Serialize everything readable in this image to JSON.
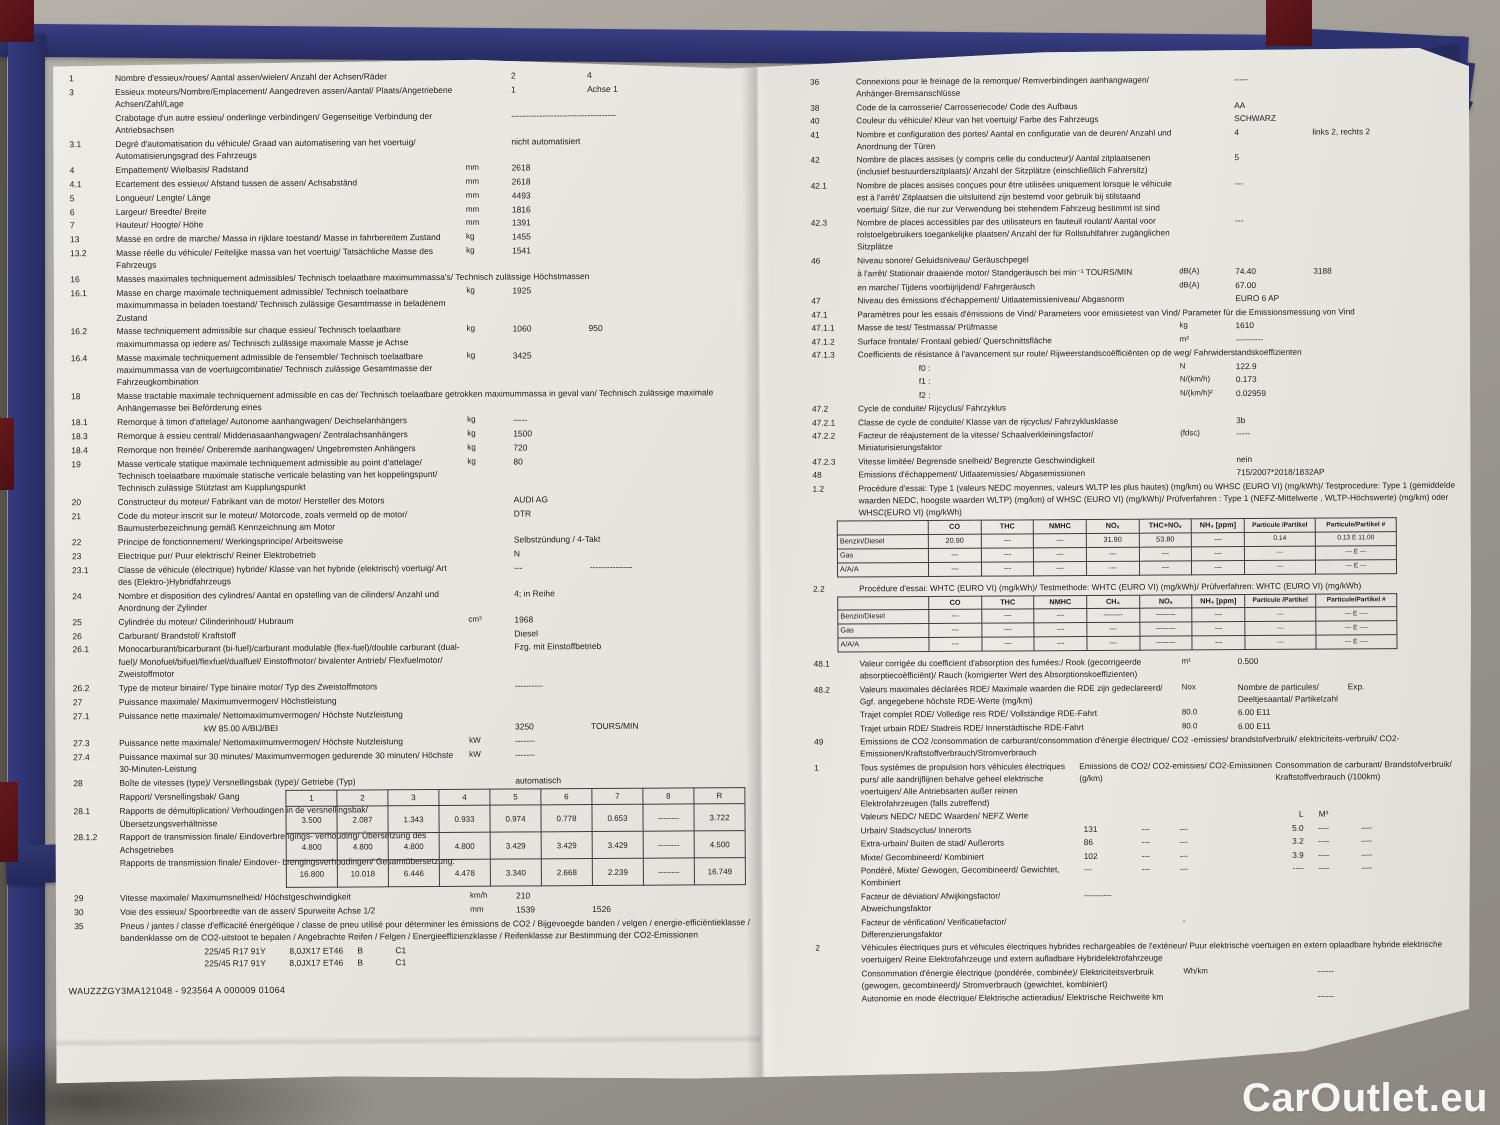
{
  "watermark": "CarOutlet.eu",
  "vin_line": "WAUZZZGY3MA121048 - 923564 A 000009   01064",
  "left_page": {
    "rows_a": [
      {
        "n": "1",
        "t": "Nombre d'essieux/roues/ Aantal assen/wielen/ Anzahl der Achsen/Räder",
        "v1": "2",
        "v2": "4"
      },
      {
        "n": "3",
        "t": "Essieux moteurs/Nombre/Emplacement/ Aangedreven assen/Aantal/ Plaats/Angetriebene Achsen/Zahl/Lage",
        "v1": "1",
        "v2": "Achse 1"
      },
      {
        "n": "",
        "t": "Crabotage d'un autre essieu/ onderlinge verbindingen/ Gegenseitige Verbindung der Antriebsachsen",
        "v1": "-------------------------------------"
      },
      {
        "n": "3.1",
        "t": "Degré d'automatisation du véhicule/ Graad van automatisering van het voertuig/ Automatisierungsgrad des Fahrzeugs",
        "v1": "nicht automatisiert"
      },
      {
        "n": "4",
        "t": "Empattement/ Wielbasis/ Radstand",
        "u": "mm",
        "v1": "2618"
      },
      {
        "n": "4.1",
        "t": "Ecartement des essieux/ Afstand tussen de assen/ Achsabständ",
        "u": "mm",
        "v1": "2618"
      },
      {
        "n": "5",
        "t": "Longueur/ Lengte/ Länge",
        "u": "mm",
        "v1": "4493"
      },
      {
        "n": "6",
        "t": "Largeur/ Breedte/ Breite",
        "u": "mm",
        "v1": "1816"
      },
      {
        "n": "7",
        "t": "Hauteur/ Hoogte/ Höhe",
        "u": "mm",
        "v1": "1391"
      },
      {
        "n": "13",
        "t": "Masse en ordre de marche/ Massa in rijklare toestand/ Masse in fahrbereitem Zustand",
        "u": "kg",
        "v1": "1455"
      },
      {
        "n": "13.2",
        "t": "Masse réelle du véhicule/ Feitelijke massa van het voertuig/ Tatsächliche Masse des Fahrzeugs",
        "u": "kg",
        "v1": "1541"
      },
      {
        "n": "16",
        "t": "Masses maximales techniquement admissibles/ Technisch toelaatbare maximummassa's/ Technisch zulässige Höchstmassen",
        "w": 1
      },
      {
        "n": "16.1",
        "t": "Masse en charge maximale techniquement admissible/ Technisch toelaatbare maximummassa in beladen toestand/ Technisch zulässige Gesamtmasse in beladenem Zustand",
        "u": "kg",
        "v1": "1925"
      },
      {
        "n": "16.2",
        "t": "Masse techniquement admissible sur chaque essieu/ Technisch toelaatbare maximummassa op iedere as/ Technisch zulässige maximale Masse je Achse",
        "u": "kg",
        "v1": "1060",
        "v2": "950"
      },
      {
        "n": "16.4",
        "t": "Masse maximale techniquement admissible de l'ensemble/ Technisch toelaatbare maximummassa van de voertuigcombinatie/ Technisch zulässige Gesamtmasse der Fahrzeugkombination",
        "u": "kg",
        "v1": "3425"
      },
      {
        "n": "18",
        "t": "Masse tractable maximale techniquement admissible en cas de/ Technisch toelaatbare getrokken maximummassa in geval van/ Technisch zulässige maximale Anhängemasse bei Beförderung eines",
        "w": 1
      },
      {
        "n": "18.1",
        "t": "Remorque à timon d'attelage/ Autonome aanhangwagen/ Deichselanhängers",
        "u": "kg",
        "v1": "-----"
      },
      {
        "n": "18.3",
        "t": "Remorque à essieu central/ Middenasaanhangwagen/ Zentralachsanhängers",
        "u": "kg",
        "v1": "1500"
      },
      {
        "n": "18.4",
        "t": "Remorque non freinée/ Onberemde aanhangwagen/ Ungebremsten Anhängers",
        "u": "kg",
        "v1": "720"
      },
      {
        "n": "19",
        "t": "Masse verticale statique maximale techniquement admissible au point d'attelage/ Technisch toelaatbare maximale statische verticale belasting van het koppelingspunt/ Technisch zulässige Stützlast am Kupplungspunkt",
        "u": "kg",
        "v1": "80"
      },
      {
        "n": "20",
        "t": "Constructeur du moteur/ Fabrikant van de motor/ Hersteller des Motors",
        "v1": "AUDI AG"
      },
      {
        "n": "21",
        "t": "Code du moteur inscrit sur le moteur/ Motorcode, zoals vermeld op de motor/ Baumusterbezeichnung gemäß Kennzeichnung am Motor",
        "v1": "DTR"
      },
      {
        "n": "22",
        "t": "Principe de fonctionnement/ Werkingsprincipe/ Arbeitsweise",
        "v1": "Selbstzündung / 4-Takt"
      },
      {
        "n": "23",
        "t": "Electrique pur/ Puur elektrisch/ Reiner Elektrobetrieb",
        "v1": "N"
      },
      {
        "n": "23.1",
        "t": "Classe de véhicule (électrique) hybride/ Klasse van het hybride (elektrisch) voertuig/ Art des (Elektro-)Hybridfahrzeugs",
        "v1": "---",
        "v2": "---------------"
      },
      {
        "n": "24",
        "t": "Nombre et disposition des cylindres/ Aantal en opstelling van de cilinders/ Anzahl und Anordnung der Zylinder",
        "v1": "4; in Reihe"
      },
      {
        "n": "25",
        "t": "Cylindrée du moteur/ Cilinderinhoud/ Hubraum",
        "u": "cm³",
        "v1": "1968"
      },
      {
        "n": "26",
        "t": "Carburant/ Brandstof/ Kraftstoff",
        "v1": "Diesel"
      },
      {
        "n": "26.1",
        "t": "Monocarburant/bicarburant (bi-fuel)/carburant modulable (flex-fuel)/double carburant (dual-fuel)/ Monofuel/bifuel/flexfuel/dualfuel/ Einstoffmotor/ bivalenter Antrieb/ Flexfuelmotor/ Zweistoffmotor",
        "v1": "Fzg. mit Einstoffbetrieb"
      },
      {
        "n": "26.2",
        "t": "Type de moteur binaire/ Type binaire motor/ Typ des Zweistoffmotors",
        "v1": "----------"
      },
      {
        "n": "27",
        "t": "Puissance maximale/ Maximumvermogen/ Höchstleistung",
        "w": 1
      },
      {
        "n": "27.1",
        "t": "Puissance nette maximale/ Nettomaximumvermogen/ Höchste Nutzleistung",
        "w": 1
      },
      {
        "n": "",
        "t": "kW  85.00 A/BIJ/BEI",
        "ind": 1,
        "v1": "3250",
        "v2": "TOURS/MIN"
      },
      {
        "n": "27.3",
        "t": "Puissance nette maximale/ Nettomaximumvermogen/ Höchste Nutzleistung",
        "u": "kW",
        "v1": "-------"
      },
      {
        "n": "27.4",
        "t": "Puissance maximal sur 30 minutes/ Maximumvermogen gedurende 30 minuten/ Höchste 30-Minuten-Leistung",
        "u": "kW",
        "v1": "-------"
      },
      {
        "n": "28",
        "t": "Boîte de vitesses (type)/ Versnellingsbak (type)/ Getriebe (Typ)",
        "v1": "automatisch"
      }
    ],
    "gearbox": {
      "side_labels": [
        {
          "n": "",
          "t": "Rapport/ Versnellingsbak/ Gang"
        },
        {
          "n": "28.1",
          "t": "Rapports de démultiplication/ Verhoudingen in de versnellingsbak/ Übersetzungsverhältnisse"
        },
        {
          "n": "28.1.2",
          "t": "Rapport de transmission finale/ Eindoverbrengings- verhouding/ Übersetzung des Achsgetriebes"
        },
        {
          "n": "",
          "t": "Rapports de transmission finale/ Eindover- brengingsverhoudingen/ Gesamtübersetzung:"
        }
      ],
      "header": [
        "1",
        "2",
        "3",
        "4",
        "5",
        "6",
        "7",
        "8",
        "R"
      ],
      "rows": [
        [
          "3.500",
          "2.087",
          "1.343",
          "0.933",
          "0.974",
          "0.778",
          "0.653",
          "--------",
          "3.722"
        ],
        [
          "4.800",
          "4.800",
          "4.800",
          "4.800",
          "3.429",
          "3.429",
          "3.429",
          "--------",
          "4.500"
        ],
        [
          "16.800",
          "10.018",
          "6.446",
          "4.478",
          "3.340",
          "2.668",
          "2.239",
          "--------",
          "16.749"
        ]
      ]
    },
    "rows_b": [
      {
        "n": "29",
        "t": "Vitesse maximale/ Maximumsnelheid/ Höchstgeschwindigkeit",
        "u": "km/h",
        "v1": "210"
      },
      {
        "n": "30",
        "t": "Voie des essieux/ Spoorbreedte van de assen/ Spurweite Achse 1/2",
        "u": "mm",
        "v1": "1539",
        "v2": "1526"
      },
      {
        "n": "35",
        "t": "Pneus / jantes / classe d'efficacité énergétique / classe de pneu utilisé pour déterminer les émissions de CO2 / Bijgevoegde banden / velgen / energie-efficiëntieklasse / bandenklasse om de CO2-uitstoot te bepalen / Angebrachte Reifen / Felgen / Energieeffizienzklasse / Reifenklasse zur Bestimmung der CO2-Emissionen",
        "w": 1
      }
    ],
    "tyres": [
      {
        "tyre": "225/45 R17 91Y",
        "rim": "8,0JX17 ET46",
        "cls": "B",
        "c1": "C1"
      },
      {
        "tyre": "225/45 R17 91Y",
        "rim": "8,0JX17 ET46",
        "cls": "B",
        "c1": "C1"
      }
    ]
  },
  "right_page": {
    "rows_a": [
      {
        "n": "36",
        "t": "Connexions pour le freinage de la remorque/ Remverbindingen aanhangwagen/ Anhänger-Bremsanschlüsse",
        "v1": "-----"
      },
      {
        "n": "38",
        "t": "Code de la carrosserie/ Carrosseriecode/ Code des Aufbaus",
        "v1": "AA"
      },
      {
        "n": "40",
        "t": "Couleur du véhicule/ Kleur van het voertuig/ Farbe des Fahrzeugs",
        "v1": "SCHWARZ"
      },
      {
        "n": "41",
        "t": "Nombre et configuration des portes/ Aantal en configuratie van de deuren/ Anzahl und Anordnung der Türen",
        "v1": "4",
        "v2": "links 2, rechts 2"
      },
      {
        "n": "42",
        "t": "Nombre de places assises (y compris celle du conducteur)/ Aantal zitplaatsenen (inclusief bestuurderszitplaats)/ Anzahl der Sitzplätze (einschließlich Fahrersitz)",
        "v1": "5"
      },
      {
        "n": "42.1",
        "t": "Nombre de places assises conçues pour être utilisées uniquement lorsque le véhicule est à l'arrêt/ Zitplaatsen die uitsluitend zijn bestemd voor gebruik bij stilstaand voertuig/ Sitze, die nur zur Verwendung bei stehendem Fahrzeug bestimmt ist sind",
        "v1": "---"
      },
      {
        "n": "42.3",
        "t": "Nombre de places accessibles par des utilisateurs en fauteuil roulant/ Aantal voor rolstoelgebruikers toegankelijke plaatsen/ Anzahl der für Rollstuhlfahrer zugänglichen Sitzplätze",
        "v1": "---"
      },
      {
        "n": "46",
        "t": "Niveau sonore/ Geluidsniveau/  Geräuschpegel",
        "w": 1
      },
      {
        "n": "",
        "t": "à l'arrêt/ Stationair draaiende motor/ Standgeräusch bei min⁻¹ TOURS/MIN",
        "u": "dB(A)",
        "v1": "74.40",
        "v2": "3188"
      },
      {
        "n": "",
        "t": "en marche/ Tijdens voorbijrijdend/ Fahrgeräusch",
        "u": "dB(A)",
        "v1": "67.00"
      },
      {
        "n": "47",
        "t": "Niveau des émissions d'échappement/ Uitlaatemissieniveau/ Abgasnorm",
        "v1": "EURO 6 AP"
      },
      {
        "n": "47.1",
        "t": "Paramètres pour les essais d'émissions de Vind/ Parameters voor emissietest van Vind/ Parameter für die Emissionsmessung von Vind",
        "w": 1
      },
      {
        "n": "47.1.1",
        "t": "Masse de test/ Testmassa/ Prüfmasse",
        "u": "kg",
        "v1": "1610"
      },
      {
        "n": "47.1.2",
        "t": "Surface frontale/ Frontaal gebied/ Querschnittsfläche",
        "u": "m²",
        "v1": "----------"
      },
      {
        "n": "47.1.3",
        "t": "Coefficients de résistance à l'avancement sur route/ Rijweerstandscoëfficiënten op de weg/ Fahrwiderstandskoeffizienten",
        "w": 1
      },
      {
        "n": "",
        "t": "f0 :",
        "ind": 2,
        "u": "N",
        "v1": "122.9"
      },
      {
        "n": "",
        "t": "f1 :",
        "ind": 2,
        "u": "N/(km/h)",
        "v1": "0.173"
      },
      {
        "n": "",
        "t": "f2 :",
        "ind": 2,
        "u": "N/(km/h)²",
        "v1": "0.02959"
      },
      {
        "n": "47.2",
        "t": "Cycle de conduite/ Rijcyclus/ Fahrzyklus",
        "w": 1
      },
      {
        "n": "47.2.1",
        "t": "Classe de cycle de conduite/ Klasse van de rijcyclus/ Fahrzyklusklasse",
        "v1": "3b"
      },
      {
        "n": "47.2.2",
        "t": "Facteur de réajustement de la vitesse/ Schaalverkleiningsfactor/ Miniaturisierungsfaktor",
        "u": "(fdsc)",
        "v1": "-----"
      },
      {
        "n": "47.2.3",
        "t": "Vitesse limitée/ Begrensde snelheid/ Begrenzte Geschwindigkeit",
        "v1": "nein"
      },
      {
        "n": "48",
        "t": "Emissions d'échappement/ Uitlaatemissies/ Abgasemissionen",
        "v1": "715/2007*2018/1832AP"
      },
      {
        "n": "1.2",
        "t": "Procédure d'essai: Type 1 (valeurs NEDC moyennes, valeurs WLTP les plus hautes) (mg/km) ou WHSC (EURO VI) (mg/kWh)/ Testprocedure: Type 1 (gemiddelde waarden NEDC, hoogste waarden WLTP) (mg/km) of WHSC (EURO VI) (mg/kWh)/ Prüfverfahren : Type 1 (NEFZ-Mittelwerte , WLTP-Höchswerte) (mg/km) oder WHSC(EURO VI) (mg/kWh)",
        "w": 1
      }
    ],
    "emis1": {
      "cols": [
        "",
        "CO",
        "THC",
        "NMHC",
        "NOₓ",
        "THC+NOₓ",
        "NH₃ [ppm]",
        "Particule /Partikel",
        "Particule/Partikel #"
      ],
      "rows": [
        [
          "Benzin/Diesel",
          "20.90",
          "---",
          "---",
          "31.90",
          "53.80",
          "---",
          "0.14",
          "0.13 E 11.00"
        ],
        [
          "Gas",
          "---",
          "---",
          "---",
          "---",
          "---",
          "---",
          "---",
          "--- E ---"
        ],
        [
          "A/A/A",
          "---",
          "---",
          "---",
          "---",
          "---",
          "---",
          "---",
          "--- E ---"
        ]
      ]
    },
    "rows_b": [
      {
        "n": "2.2",
        "t": "Procédure d'essai: WHTC (EURO VI) (mg/kWh)/ Testmethode: WHTC (EURO VI) (mg/kWh)/ Prüfverfahren: WHTC (EURO VI) (mg/kWh)",
        "w": 1
      }
    ],
    "emis2": {
      "cols": [
        "",
        "CO",
        "THC",
        "NMHC",
        "CH₄",
        "NOₓ",
        "NH₃ [ppm]",
        "Particule /Partikel",
        "Particule/Partikel #"
      ],
      "rows": [
        [
          "Benzin/Diesel",
          "---",
          "---",
          "---",
          "--------",
          "--------",
          "---",
          "---",
          "--- E ----"
        ],
        [
          "Gas",
          "---",
          "---",
          "---",
          "---",
          "--------",
          "---",
          "---",
          "--- E ----"
        ],
        [
          "A/A/A",
          "---",
          "---",
          "---",
          "---",
          "--------",
          "---",
          "---",
          "--- E ----"
        ]
      ]
    },
    "rows_c": [
      {
        "n": "48.1",
        "t": "Valeur corrigée du coefficient d'absorption des fumées:/ Rook (gecorrigeerde absorptiecoëfficiënt)/ Rauch (korrigierter Wert des Absorptionskoeffizienten)",
        "u": "m¹",
        "v1": "0.500"
      },
      {
        "n": "48.2",
        "t": "Valeurs maximales déclarées RDE/ Maximale waarden die RDE zijn gedeclareerd/ Ggf. angegebene höchste RDE-Werte  (mg/km)",
        "u": "Nox",
        "v1": "Nombre de particules/ Deeltjesaantal/ Partikelzahl",
        "vw": 1,
        "v2": "Exp."
      },
      {
        "n": "",
        "t": "Trajet complet RDE/ Volledige reis RDE/ Vollständige RDE-Fahrt",
        "u": "80.0",
        "v1": "6.00 E11"
      },
      {
        "n": "",
        "t": "Trajet urbain RDE/ Stadreis RDE/ Innerstädtische RDE-Fahrt",
        "u": "80.0",
        "v1": "6.00 E11"
      },
      {
        "n": "49",
        "t": "Emissions de CO2 /consommation de carburant/consommation d'énergie électrique/ CO2 -emissies/ brandstofverbruik/ elektriciteits-verbruik/ CO2-Emissionen/Kraftstoffverbrauch/Stromverbrauch",
        "w": 1
      }
    ],
    "co2": {
      "num": "1",
      "intro": "Tous systèmes de propulsion hors véhicules électriques purs/ alle aandrijflijnen behalve geheel elektrische voertuigen/ Alle Antriebsarten außer reinen Elektrofahrzeugen (falls zutreffend)",
      "h1": "Emissions de CO2/ CO2-emissies/ CO2-Emissionen (g/km)",
      "h2": "Consommation de carburant/ Brandstofverbruik/ Kraftstoffverbrauch (/100km)",
      "rows": [
        {
          "t": "Valeurs NEDC/ NEDC Waarden/ NEFZ Werte",
          "vals": [
            "",
            "",
            "",
            "L",
            "M³",
            ""
          ]
        },
        {
          "t": "Urbain/ Stadscyclus/ Innerorts",
          "vals": [
            "131",
            "---",
            "---",
            "5.0",
            "----",
            "----"
          ]
        },
        {
          "t": "Extra-urbain/ Buiten de stad/ Außerorts",
          "vals": [
            "86",
            "---",
            "---",
            "3.2",
            "----",
            "----"
          ]
        },
        {
          "t": "Mixte/ Gecombineerd/ Kombiniert",
          "vals": [
            "102",
            "---",
            "---",
            "3.9",
            "----",
            "----"
          ]
        },
        {
          "t": "Pondéré, Mixte/ Gewogen, Gecombineerd/ Gewichtet, Kombiniert",
          "vals": [
            "---",
            "---",
            "---",
            "----",
            "----",
            "----"
          ]
        },
        {
          "t": "Facteur de déviation/ Afwijkingsfactor/ Abweichungsfaktor",
          "vals": [
            "----------",
            "",
            "",
            "",
            "",
            ""
          ]
        },
        {
          "t": "Facteur de vérification/ Verificatiefactor/ Differenzierungsfaktor",
          "vals": [
            "",
            "",
            "-",
            "",
            "",
            ""
          ]
        }
      ]
    },
    "rows_d": [
      {
        "n": "2",
        "t": "Véhicules électriques purs et véhicules électriques hybrides rechargeables de l'extérieur/ Puur elektrische voertuigen en extern oplaadbare hybride elektrische voertuigen/ Reine Elektrofahrzeuge und extern aufladbare Hybridelektrofahrzeuge",
        "w": 1
      },
      {
        "n": "",
        "t": "Consommation d'énergie électrique (pondérée, combinée)/ Elektriciteitsverbruik (gewogen, gecombineerd)/ Stromverbrauch (gewichtet, kombiniert)",
        "u": "Wh/km",
        "v2": "------"
      },
      {
        "n": "",
        "t": "Autonomie en mode électrique/ Elektrische actieradius/ Elektrische Reichweite   km",
        "v2": "------"
      }
    ]
  }
}
